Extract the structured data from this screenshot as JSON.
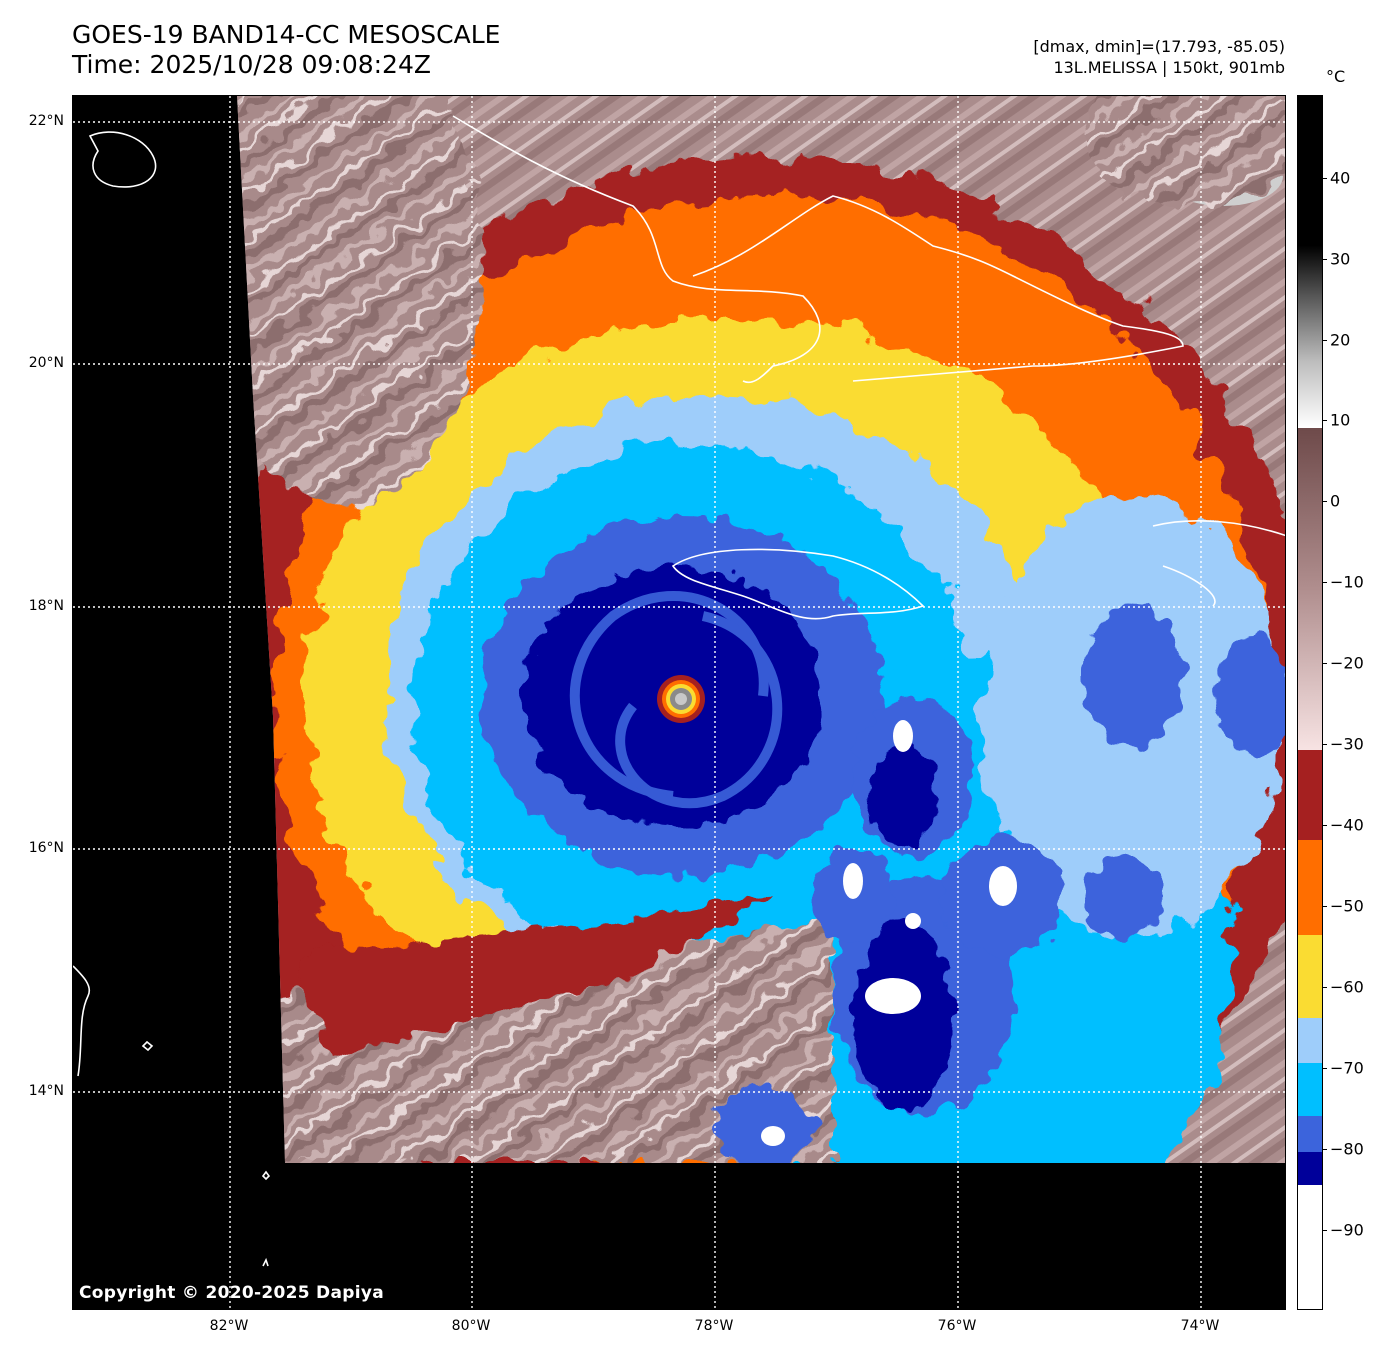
{
  "header": {
    "title_line1": "GOES-19 BAND14-CC MESOSCALE",
    "title_line2": "Time: 2025/10/28 09:08:24Z",
    "info_line1": "[dmax, dmin]=(17.793, -85.05)",
    "info_line2": "13L.MELISSA | 150kt, 901mb"
  },
  "map": {
    "copyright": "Copyright © 2020-2025 Dapiya",
    "lat_labels": [
      "22°N",
      "20°N",
      "18°N",
      "16°N",
      "14°N"
    ],
    "lon_labels": [
      "82°W",
      "80°W",
      "78°W",
      "76°W",
      "74°W"
    ],
    "storm_name": "13L.MELISSA",
    "colors": {
      "no_data": "#000000",
      "coastline": "#ffffff",
      "gridline": "#ffffff"
    }
  },
  "colorbar": {
    "unit": "°C",
    "tick_labels": [
      "40",
      "30",
      "20",
      "10",
      "0",
      "−10",
      "−20",
      "−30",
      "−40",
      "−50",
      "−60",
      "−70",
      "−80",
      "−90"
    ],
    "scale": [
      {
        "from": -100,
        "to": -86,
        "color": "#ffffff"
      },
      {
        "from": -86,
        "to": -82,
        "color": "#00009a"
      },
      {
        "from": -82,
        "to": -78,
        "color": "#3c64dc"
      },
      {
        "from": -78,
        "to": -70,
        "color": "#00bfff"
      },
      {
        "from": -70,
        "to": -64,
        "color": "#9ecdfa"
      },
      {
        "from": -64,
        "to": -52,
        "color": "#fadc32"
      },
      {
        "from": -52,
        "to": -41,
        "color": "#ff6e00"
      },
      {
        "from": -41,
        "to": -30,
        "color": "#a52020"
      },
      {
        "from": -30,
        "to": 9,
        "color": "gradient-pink-brown"
      },
      {
        "from": 9,
        "to": 50,
        "color": "gradient-white-black"
      }
    ]
  }
}
